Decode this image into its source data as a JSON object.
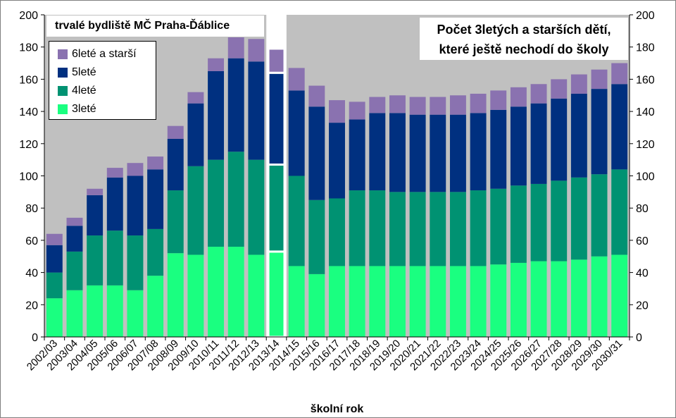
{
  "chart_data": {
    "type": "stacked-bar",
    "title_lines": [
      "Počet 3letých a starších dětí,",
      "které ještě nechodí do školy"
    ],
    "note": "trvalé bydliště  MČ Praha-Ďáblice",
    "xlabel": "školní rok",
    "ylabel": "",
    "ylim": [
      0,
      200
    ],
    "yticks": [
      0,
      20,
      40,
      60,
      80,
      100,
      120,
      140,
      160,
      180,
      200
    ],
    "grid": false,
    "legend_position": "top-left",
    "highlighted_category": "2013/14",
    "categories": [
      "2002/03",
      "2003/04",
      "2004/05",
      "2005/06",
      "2006/07",
      "2007/08",
      "2008/09",
      "2009/10",
      "2010/11",
      "2011/12",
      "2012/13",
      "2013/14",
      "2014/15",
      "2015/16",
      "2016/17",
      "2017/18",
      "2018/19",
      "2019/20",
      "2020/21",
      "2021/22",
      "2022/23",
      "2023/24",
      "2024/25",
      "2025/26",
      "2026/27",
      "2027/28",
      "2028/29",
      "2029/30",
      "2030/31"
    ],
    "series": [
      {
        "name": "3leté",
        "color": "#1aff80",
        "values": [
          24,
          29,
          32,
          32,
          29,
          38,
          52,
          51,
          56,
          56,
          51,
          53,
          44,
          39,
          44,
          44,
          44,
          44,
          44,
          44,
          44,
          44,
          45,
          46,
          47,
          47,
          48,
          50,
          51
        ]
      },
      {
        "name": "4leté",
        "color": "#009272",
        "values": [
          16,
          24,
          31,
          34,
          34,
          29,
          39,
          55,
          54,
          59,
          59,
          54,
          56,
          46,
          42,
          47,
          47,
          46,
          46,
          46,
          46,
          47,
          47,
          48,
          48,
          50,
          51,
          51,
          53
        ]
      },
      {
        "name": "5leté",
        "color": "#003080",
        "values": [
          17,
          16,
          25,
          33,
          37,
          37,
          32,
          39,
          55,
          58,
          61,
          57,
          53,
          58,
          47,
          44,
          48,
          49,
          48,
          48,
          48,
          48,
          49,
          49,
          50,
          51,
          52,
          53,
          53
        ]
      },
      {
        "name": "6leté a starší",
        "color": "#8a72b0",
        "values": [
          7,
          5,
          4,
          6,
          8,
          8,
          8,
          7,
          8,
          13,
          14,
          15,
          14,
          13,
          14,
          11,
          10,
          11,
          11,
          11,
          12,
          12,
          12,
          12,
          12,
          12,
          12,
          12,
          13
        ]
      }
    ],
    "colors": {
      "plot_background": "#c0c0c0",
      "highlight_outline": "#ffffff"
    }
  }
}
